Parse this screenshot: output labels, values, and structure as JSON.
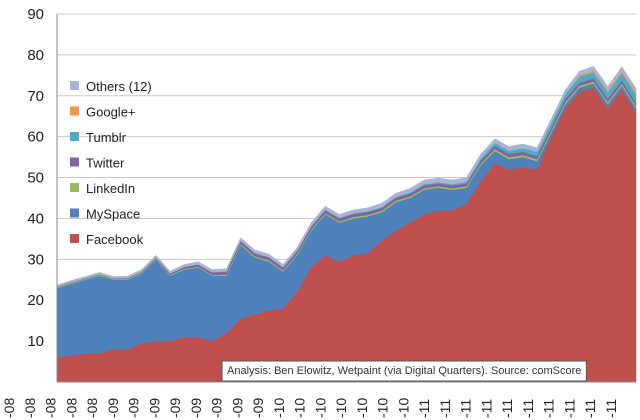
{
  "chart_data": {
    "type": "area",
    "stacked": true,
    "ylim": [
      0,
      90
    ],
    "yticks": [
      10,
      20,
      30,
      40,
      50,
      60,
      70,
      80,
      90
    ],
    "grid": true,
    "legend_placement": "left",
    "x_tick_labels": [
      "-08",
      "-08",
      "-08",
      "-08",
      "-08",
      "-09",
      "-09",
      "-09",
      "-09",
      "-09",
      "-09",
      "-09",
      "-09",
      "-10",
      "-10",
      "-10",
      "-10",
      "-10",
      "-10",
      "-10",
      "-11",
      "-11",
      "-11",
      "-11",
      "-11",
      "-11",
      "-11",
      "-11",
      "-11",
      "-11"
    ],
    "annotation": "Analysis: Ben Elowitz, Wetpaint (via Digital Quarters). Source: comScore",
    "series": [
      {
        "name": "Facebook",
        "color": "#c0504d",
        "values": [
          6,
          6.5,
          7,
          7,
          8,
          8,
          9.5,
          10,
          10,
          11,
          11,
          10,
          12,
          15.5,
          16.5,
          17.5,
          18,
          22,
          28,
          31,
          29.5,
          31,
          31.5,
          34.5,
          37,
          39,
          41,
          42,
          42,
          43.5,
          49,
          53.5,
          52,
          52.5,
          52,
          60,
          67,
          71,
          72,
          67,
          71.5,
          66
        ]
      },
      {
        "name": "MySpace",
        "color": "#4f81bd",
        "values": [
          17,
          17.5,
          18,
          19,
          17,
          17,
          17,
          20,
          16,
          16.5,
          17,
          16,
          14,
          18,
          14,
          12,
          9,
          9,
          9,
          10,
          9.5,
          9,
          9,
          7,
          7,
          6,
          6,
          5.5,
          5,
          4,
          4,
          3,
          2.5,
          2.5,
          2,
          1,
          1,
          1,
          1,
          1,
          1,
          1
        ]
      },
      {
        "name": "LinkedIn",
        "color": "#9bbb59",
        "values": [
          0.2,
          0.2,
          0.2,
          0.2,
          0.2,
          0.2,
          0.2,
          0.2,
          0.2,
          0.2,
          0.2,
          0.2,
          0.3,
          0.3,
          0.3,
          0.3,
          0.3,
          0.3,
          0.3,
          0.3,
          0.3,
          0.4,
          0.4,
          0.4,
          0.4,
          0.4,
          0.4,
          0.4,
          0.4,
          0.4,
          0.4,
          0.5,
          0.5,
          0.5,
          0.5,
          0.5,
          0.5,
          0.5,
          0.5,
          0.5,
          0.5,
          0.5
        ]
      },
      {
        "name": "Twitter",
        "color": "#8064a2",
        "values": [
          0.1,
          0.1,
          0.1,
          0.1,
          0.1,
          0.2,
          0.2,
          0.2,
          0.3,
          0.4,
          0.5,
          0.6,
          0.7,
          0.7,
          0.7,
          0.7,
          0.7,
          0.7,
          0.7,
          0.7,
          0.7,
          0.7,
          0.7,
          0.7,
          0.7,
          0.7,
          0.7,
          0.7,
          0.7,
          0.7,
          0.8,
          0.8,
          0.8,
          0.8,
          0.8,
          0.8,
          0.8,
          0.8,
          0.8,
          0.8,
          0.8,
          0.8
        ]
      },
      {
        "name": "Tumblr",
        "color": "#4bacc6",
        "values": [
          0.1,
          0.1,
          0.1,
          0.1,
          0.1,
          0.1,
          0.1,
          0.1,
          0.1,
          0.1,
          0.1,
          0.1,
          0.1,
          0.1,
          0.1,
          0.1,
          0.1,
          0.2,
          0.2,
          0.2,
          0.2,
          0.2,
          0.2,
          0.2,
          0.2,
          0.3,
          0.3,
          0.3,
          0.3,
          0.4,
          0.5,
          0.7,
          0.8,
          0.9,
          1,
          1.1,
          1.2,
          1.4,
          1.5,
          1.6,
          1.8,
          2
        ]
      },
      {
        "name": "Google+",
        "color": "#f79646",
        "values": [
          0,
          0,
          0,
          0,
          0,
          0,
          0,
          0,
          0,
          0,
          0,
          0,
          0,
          0,
          0,
          0,
          0,
          0,
          0,
          0,
          0,
          0,
          0,
          0,
          0,
          0,
          0,
          0,
          0,
          0,
          0,
          0,
          0,
          0,
          0,
          0,
          0,
          0.3,
          0.4,
          0.4,
          0.5,
          0.5
        ]
      },
      {
        "name": "Others (12)",
        "color": "#a5b4d8",
        "values": [
          0.3,
          0.4,
          0.4,
          0.4,
          0.4,
          0.4,
          0.5,
          0.5,
          0.5,
          0.5,
          0.6,
          0.6,
          0.6,
          0.7,
          0.7,
          0.7,
          0.7,
          0.7,
          0.8,
          0.8,
          0.8,
          0.8,
          0.8,
          0.9,
          0.9,
          0.9,
          1,
          1,
          1,
          1,
          1,
          1,
          1,
          1,
          1,
          1,
          1,
          1,
          1,
          1,
          1,
          1
        ]
      }
    ]
  }
}
